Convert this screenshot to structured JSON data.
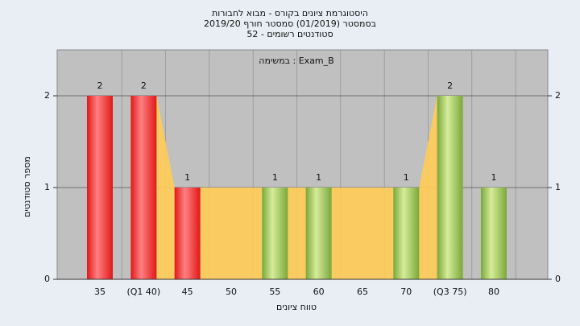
{
  "chart_data": {
    "type": "bar",
    "title": [
      "היסטוגרמת ציונים בקורס - מבוא לחבורות",
      "בסמסטר  (01/2019)  סמסטר חורף  2019/20",
      "סטודנטים רשומים - 52"
    ],
    "annotation": "במשימה : Exam_B",
    "x_label": "טווח ציונים",
    "y_label": "מספר סטודנטים",
    "categories": [
      "35",
      "(Q1 40)",
      "45",
      "50",
      "55",
      "60",
      "65",
      "70",
      "(Q3 75)",
      "80"
    ],
    "values": [
      2,
      2,
      1,
      0,
      1,
      1,
      0,
      1,
      2,
      1
    ],
    "value_labels": [
      "2",
      "2",
      "1",
      null,
      "1",
      "1",
      null,
      "1",
      "2",
      "1"
    ],
    "colors": [
      "#e01818",
      "#e01818",
      "#e01818",
      "#7aa83a",
      "#7aa83a",
      "#7aa83a",
      "#7aa83a",
      "#7aa83a",
      "#7aa83a",
      "#7aa83a"
    ],
    "area_color": "#ffcc55",
    "ylim": [
      0,
      2.5
    ],
    "yticks": [
      0,
      1,
      2
    ],
    "grid": true
  }
}
